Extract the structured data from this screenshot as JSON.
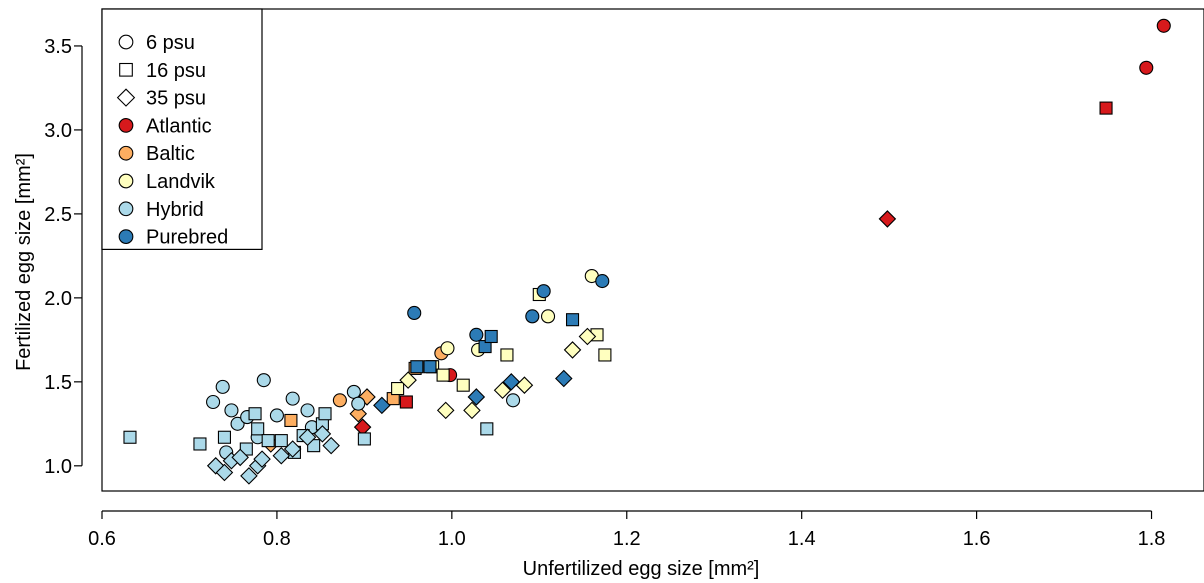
{
  "chart_data": {
    "type": "scatter",
    "xlabel": "Unfertilized egg size [mm²]",
    "ylabel": "Fertilized egg size [mm²]",
    "xlim": [
      0.6,
      1.86
    ],
    "ylim": [
      0.85,
      3.72
    ],
    "x_ticks": [
      "0.6",
      "0.8",
      "1.0",
      "1.2",
      "1.4",
      "1.6",
      "1.8"
    ],
    "y_ticks": [
      "1.0",
      "1.5",
      "2.0",
      "2.5",
      "3.0",
      "3.5"
    ],
    "legend_position": "top-left",
    "legend": {
      "shapes": [
        {
          "label": "6 psu",
          "shape": "circle"
        },
        {
          "label": "16 psu",
          "shape": "square"
        },
        {
          "label": "35 psu",
          "shape": "diamond"
        }
      ],
      "groups": [
        {
          "label": "Atlantic",
          "color": "#d7191c"
        },
        {
          "label": "Baltic",
          "color": "#fdae61"
        },
        {
          "label": "Landvik",
          "color": "#ffffbf"
        },
        {
          "label": "Hybrid",
          "color": "#abd9e9"
        },
        {
          "label": "Purebred",
          "color": "#2c7bb6"
        }
      ]
    },
    "colors": {
      "Atlantic": "#d7191c",
      "Baltic": "#fdae61",
      "Landvik": "#ffffbf",
      "Hybrid": "#abd9e9",
      "Purebred": "#2c7bb6"
    },
    "points": [
      {
        "x": 1.814,
        "y": 3.62,
        "shape": "circle",
        "group": "Atlantic"
      },
      {
        "x": 1.794,
        "y": 3.37,
        "shape": "circle",
        "group": "Atlantic"
      },
      {
        "x": 1.748,
        "y": 3.13,
        "shape": "square",
        "group": "Atlantic"
      },
      {
        "x": 1.498,
        "y": 2.47,
        "shape": "diamond",
        "group": "Atlantic"
      },
      {
        "x": 0.998,
        "y": 1.54,
        "shape": "circle",
        "group": "Atlantic"
      },
      {
        "x": 0.948,
        "y": 1.38,
        "shape": "square",
        "group": "Atlantic"
      },
      {
        "x": 0.898,
        "y": 1.23,
        "shape": "diamond",
        "group": "Atlantic"
      },
      {
        "x": 0.872,
        "y": 1.39,
        "shape": "circle",
        "group": "Baltic"
      },
      {
        "x": 0.988,
        "y": 1.67,
        "shape": "circle",
        "group": "Baltic"
      },
      {
        "x": 0.816,
        "y": 1.27,
        "shape": "square",
        "group": "Baltic"
      },
      {
        "x": 0.933,
        "y": 1.4,
        "shape": "square",
        "group": "Baltic"
      },
      {
        "x": 0.958,
        "y": 1.58,
        "shape": "square",
        "group": "Baltic"
      },
      {
        "x": 0.793,
        "y": 1.13,
        "shape": "diamond",
        "group": "Baltic"
      },
      {
        "x": 0.893,
        "y": 1.31,
        "shape": "diamond",
        "group": "Baltic"
      },
      {
        "x": 0.903,
        "y": 1.41,
        "shape": "diamond",
        "group": "Baltic"
      },
      {
        "x": 0.995,
        "y": 1.7,
        "shape": "circle",
        "group": "Landvik"
      },
      {
        "x": 1.03,
        "y": 1.69,
        "shape": "circle",
        "group": "Landvik"
      },
      {
        "x": 1.11,
        "y": 1.89,
        "shape": "circle",
        "group": "Landvik"
      },
      {
        "x": 1.16,
        "y": 2.13,
        "shape": "circle",
        "group": "Landvik"
      },
      {
        "x": 0.938,
        "y": 1.46,
        "shape": "square",
        "group": "Landvik"
      },
      {
        "x": 0.978,
        "y": 1.59,
        "shape": "square",
        "group": "Landvik"
      },
      {
        "x": 1.013,
        "y": 1.48,
        "shape": "square",
        "group": "Landvik"
      },
      {
        "x": 1.063,
        "y": 1.66,
        "shape": "square",
        "group": "Landvik"
      },
      {
        "x": 1.1,
        "y": 2.02,
        "shape": "square",
        "group": "Landvik"
      },
      {
        "x": 1.166,
        "y": 1.78,
        "shape": "square",
        "group": "Landvik"
      },
      {
        "x": 1.175,
        "y": 1.66,
        "shape": "square",
        "group": "Landvik"
      },
      {
        "x": 0.99,
        "y": 1.54,
        "shape": "square",
        "group": "Landvik"
      },
      {
        "x": 0.95,
        "y": 1.51,
        "shape": "diamond",
        "group": "Landvik"
      },
      {
        "x": 0.993,
        "y": 1.33,
        "shape": "diamond",
        "group": "Landvik"
      },
      {
        "x": 1.023,
        "y": 1.33,
        "shape": "diamond",
        "group": "Landvik"
      },
      {
        "x": 1.058,
        "y": 1.45,
        "shape": "diamond",
        "group": "Landvik"
      },
      {
        "x": 1.083,
        "y": 1.48,
        "shape": "diamond",
        "group": "Landvik"
      },
      {
        "x": 1.138,
        "y": 1.69,
        "shape": "diamond",
        "group": "Landvik"
      },
      {
        "x": 1.155,
        "y": 1.77,
        "shape": "diamond",
        "group": "Landvik"
      },
      {
        "x": 0.727,
        "y": 1.38,
        "shape": "circle",
        "group": "Hybrid"
      },
      {
        "x": 0.738,
        "y": 1.47,
        "shape": "circle",
        "group": "Hybrid"
      },
      {
        "x": 0.748,
        "y": 1.33,
        "shape": "circle",
        "group": "Hybrid"
      },
      {
        "x": 0.755,
        "y": 1.25,
        "shape": "circle",
        "group": "Hybrid"
      },
      {
        "x": 0.766,
        "y": 1.29,
        "shape": "circle",
        "group": "Hybrid"
      },
      {
        "x": 0.778,
        "y": 1.17,
        "shape": "circle",
        "group": "Hybrid"
      },
      {
        "x": 0.785,
        "y": 1.51,
        "shape": "circle",
        "group": "Hybrid"
      },
      {
        "x": 0.8,
        "y": 1.3,
        "shape": "circle",
        "group": "Hybrid"
      },
      {
        "x": 0.818,
        "y": 1.4,
        "shape": "circle",
        "group": "Hybrid"
      },
      {
        "x": 0.835,
        "y": 1.33,
        "shape": "circle",
        "group": "Hybrid"
      },
      {
        "x": 0.84,
        "y": 1.23,
        "shape": "circle",
        "group": "Hybrid"
      },
      {
        "x": 0.888,
        "y": 1.44,
        "shape": "circle",
        "group": "Hybrid"
      },
      {
        "x": 0.893,
        "y": 1.37,
        "shape": "circle",
        "group": "Hybrid"
      },
      {
        "x": 1.07,
        "y": 1.39,
        "shape": "circle",
        "group": "Hybrid"
      },
      {
        "x": 0.742,
        "y": 1.08,
        "shape": "circle",
        "group": "Hybrid"
      },
      {
        "x": 0.632,
        "y": 1.17,
        "shape": "square",
        "group": "Hybrid"
      },
      {
        "x": 0.712,
        "y": 1.13,
        "shape": "square",
        "group": "Hybrid"
      },
      {
        "x": 0.74,
        "y": 1.17,
        "shape": "square",
        "group": "Hybrid"
      },
      {
        "x": 0.765,
        "y": 1.1,
        "shape": "square",
        "group": "Hybrid"
      },
      {
        "x": 0.775,
        "y": 1.31,
        "shape": "square",
        "group": "Hybrid"
      },
      {
        "x": 0.778,
        "y": 1.22,
        "shape": "square",
        "group": "Hybrid"
      },
      {
        "x": 0.79,
        "y": 1.15,
        "shape": "square",
        "group": "Hybrid"
      },
      {
        "x": 0.805,
        "y": 1.15,
        "shape": "square",
        "group": "Hybrid"
      },
      {
        "x": 0.82,
        "y": 1.08,
        "shape": "square",
        "group": "Hybrid"
      },
      {
        "x": 0.83,
        "y": 1.18,
        "shape": "square",
        "group": "Hybrid"
      },
      {
        "x": 0.842,
        "y": 1.12,
        "shape": "square",
        "group": "Hybrid"
      },
      {
        "x": 0.852,
        "y": 1.25,
        "shape": "square",
        "group": "Hybrid"
      },
      {
        "x": 0.855,
        "y": 1.31,
        "shape": "square",
        "group": "Hybrid"
      },
      {
        "x": 0.9,
        "y": 1.16,
        "shape": "square",
        "group": "Hybrid"
      },
      {
        "x": 1.04,
        "y": 1.22,
        "shape": "square",
        "group": "Hybrid"
      },
      {
        "x": 0.73,
        "y": 1.0,
        "shape": "diamond",
        "group": "Hybrid"
      },
      {
        "x": 0.74,
        "y": 0.96,
        "shape": "diamond",
        "group": "Hybrid"
      },
      {
        "x": 0.748,
        "y": 1.03,
        "shape": "diamond",
        "group": "Hybrid"
      },
      {
        "x": 0.758,
        "y": 1.05,
        "shape": "diamond",
        "group": "Hybrid"
      },
      {
        "x": 0.768,
        "y": 0.94,
        "shape": "diamond",
        "group": "Hybrid"
      },
      {
        "x": 0.778,
        "y": 1.0,
        "shape": "diamond",
        "group": "Hybrid"
      },
      {
        "x": 0.783,
        "y": 1.04,
        "shape": "diamond",
        "group": "Hybrid"
      },
      {
        "x": 0.805,
        "y": 1.06,
        "shape": "diamond",
        "group": "Hybrid"
      },
      {
        "x": 0.818,
        "y": 1.1,
        "shape": "diamond",
        "group": "Hybrid"
      },
      {
        "x": 0.835,
        "y": 1.17,
        "shape": "diamond",
        "group": "Hybrid"
      },
      {
        "x": 0.852,
        "y": 1.19,
        "shape": "diamond",
        "group": "Hybrid"
      },
      {
        "x": 0.862,
        "y": 1.12,
        "shape": "diamond",
        "group": "Hybrid"
      },
      {
        "x": 0.957,
        "y": 1.91,
        "shape": "circle",
        "group": "Purebred"
      },
      {
        "x": 1.028,
        "y": 1.78,
        "shape": "circle",
        "group": "Purebred"
      },
      {
        "x": 1.092,
        "y": 1.89,
        "shape": "circle",
        "group": "Purebred"
      },
      {
        "x": 1.105,
        "y": 2.04,
        "shape": "circle",
        "group": "Purebred"
      },
      {
        "x": 1.172,
        "y": 2.1,
        "shape": "circle",
        "group": "Purebred"
      },
      {
        "x": 0.96,
        "y": 1.59,
        "shape": "square",
        "group": "Purebred"
      },
      {
        "x": 0.975,
        "y": 1.59,
        "shape": "square",
        "group": "Purebred"
      },
      {
        "x": 1.038,
        "y": 1.71,
        "shape": "square",
        "group": "Purebred"
      },
      {
        "x": 1.045,
        "y": 1.77,
        "shape": "square",
        "group": "Purebred"
      },
      {
        "x": 1.138,
        "y": 1.87,
        "shape": "square",
        "group": "Purebred"
      },
      {
        "x": 0.92,
        "y": 1.36,
        "shape": "diamond",
        "group": "Purebred"
      },
      {
        "x": 1.028,
        "y": 1.41,
        "shape": "diamond",
        "group": "Purebred"
      },
      {
        "x": 1.068,
        "y": 1.5,
        "shape": "diamond",
        "group": "Purebred"
      },
      {
        "x": 1.128,
        "y": 1.52,
        "shape": "diamond",
        "group": "Purebred"
      }
    ]
  }
}
